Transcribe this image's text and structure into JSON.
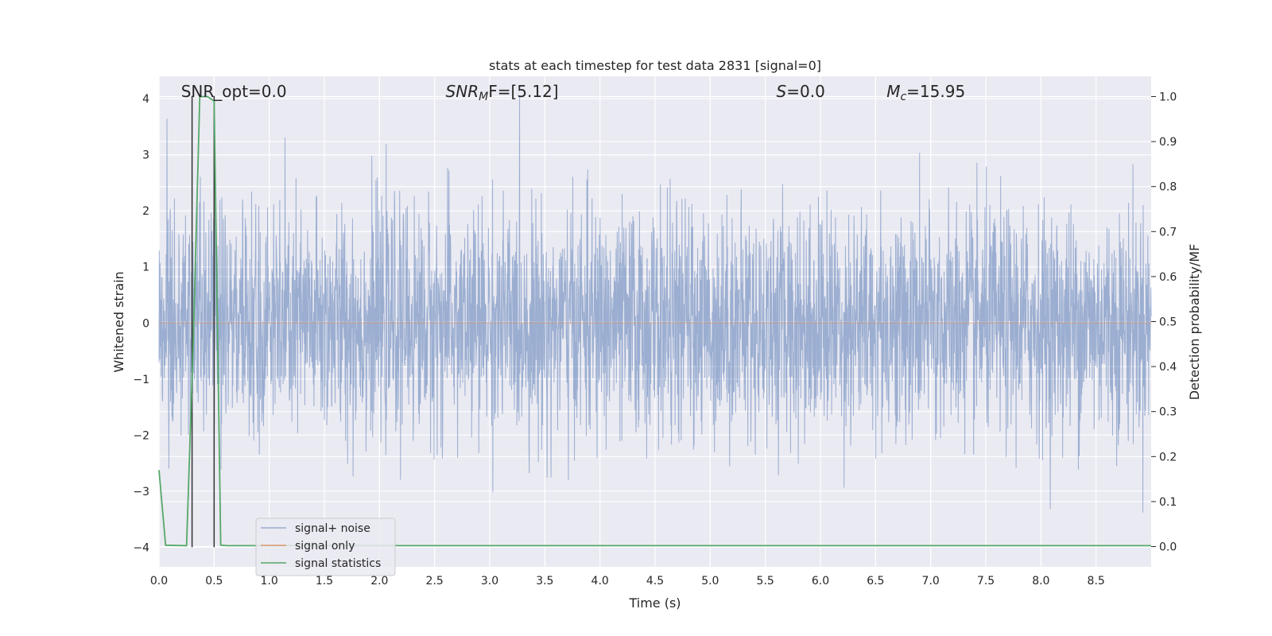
{
  "chart_data": {
    "type": "line",
    "title": "stats at each timestep for test data 2831 [signal=0]",
    "xlabel": "Time (s)",
    "ylabel": "Whitened strain",
    "ylabel_right": "Detection probability/MF",
    "xlim": [
      0.0,
      9.0
    ],
    "ylim": [
      -4.35,
      4.4
    ],
    "ylim_right": [
      -0.045,
      1.045
    ],
    "x_ticks": [
      "0.0",
      "0.5",
      "1.0",
      "1.5",
      "2.0",
      "2.5",
      "3.0",
      "3.5",
      "4.0",
      "4.5",
      "5.0",
      "5.5",
      "6.0",
      "6.5",
      "7.0",
      "7.5",
      "8.0",
      "8.5"
    ],
    "y_ticks": [
      "4",
      "3",
      "2",
      "1",
      "0",
      "−1",
      "−2",
      "−3",
      "−4"
    ],
    "y_ticks_right": [
      "1.0",
      "0.9",
      "0.8",
      "0.7",
      "0.6",
      "0.5",
      "0.4",
      "0.3",
      "0.2",
      "0.1",
      "0.0"
    ],
    "grid": true,
    "legend_position": "lower-left",
    "annotations": [
      {
        "text": "SNR_opt=0.0",
        "x": 0.2
      },
      {
        "text": "SNR",
        "sub": "M",
        "after": "F=[5.12]",
        "italic": true,
        "x": 2.6
      },
      {
        "text": "S",
        "after": "=0.0",
        "italic": true,
        "x": 5.6
      },
      {
        "text": "M",
        "sub": "c",
        "after": "=15.95",
        "italic": true,
        "x": 6.6
      }
    ],
    "vlines_x": [
      0.3,
      0.5
    ],
    "series": [
      {
        "name": "signal+ noise",
        "color": "#4c72b0",
        "axis": "left",
        "note": "dense whitened noise, roughly gaussian with std ~1, extremes near +/-4"
      },
      {
        "name": "signal only",
        "color": "#dd8452",
        "axis": "left",
        "values": "zero"
      },
      {
        "name": "signal statistics",
        "color": "#55a868",
        "axis": "right",
        "x": [
          0.0,
          0.06,
          0.25,
          0.31,
          0.37,
          0.44,
          0.5,
          0.56,
          0.62,
          9.0
        ],
        "y": [
          0.17,
          0.003,
          0.002,
          0.45,
          1.0,
          1.0,
          0.99,
          0.003,
          0.002,
          0.002
        ]
      }
    ]
  }
}
